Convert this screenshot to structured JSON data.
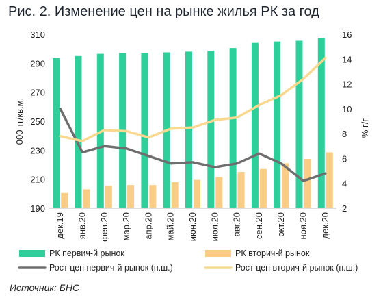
{
  "title": "Рис. 2. Изменение цен на рынке жилья РК за год",
  "source": "Источник: БНС",
  "colors": {
    "primary_bar": "#2ecf9a",
    "secondary_bar": "#f9cd85",
    "primary_line": "#6e6e6e",
    "secondary_line": "#f9d88f"
  },
  "chart_data": {
    "type": "bar",
    "categories": [
      "дек.19",
      "янв.20",
      "фев.20",
      "мар.20",
      "апр.20",
      "май.20",
      "июн.20",
      "июл.20",
      "авг.20",
      "сен.20",
      "окт.20",
      "ноя.20",
      "дек.20"
    ],
    "ylabel": "000 тг/кв.м.",
    "ylabel_right": "% г/г",
    "ylim": [
      190,
      310
    ],
    "yticks": [
      190,
      210,
      230,
      250,
      270,
      290,
      310
    ],
    "ylim_right": [
      2,
      16
    ],
    "yticks_right": [
      2,
      4,
      6,
      8,
      10,
      12,
      14,
      16
    ],
    "grid": false,
    "legend_position": "bottom",
    "series": [
      {
        "name": "РК первич-й рынок",
        "type": "bar",
        "axis": "left",
        "values": [
          293.5,
          295,
          296.5,
          297,
          297.2,
          297.5,
          298,
          298.5,
          300.5,
          304,
          305,
          305.5,
          307.5
        ]
      },
      {
        "name": "РК вторич-й рынок",
        "type": "bar",
        "axis": "left",
        "values": [
          200.5,
          203,
          205.5,
          206,
          206,
          208,
          209.5,
          211.5,
          215,
          217,
          221,
          224,
          228.5
        ]
      },
      {
        "name": "Рост цен первич-й рынок (п.ш.)",
        "type": "line",
        "axis": "right",
        "values": [
          10,
          6.5,
          7,
          6.8,
          6.2,
          5.6,
          5.7,
          5.3,
          5.6,
          6.4,
          5.6,
          4.2,
          4.8
        ]
      },
      {
        "name": "Рост цен вторич-й рынок (п.ш.)",
        "type": "line",
        "axis": "right",
        "values": [
          7.8,
          7.4,
          8.3,
          8.2,
          7.7,
          8.4,
          8.5,
          9.1,
          9.3,
          10.3,
          11.1,
          12.4,
          14.1
        ]
      }
    ]
  }
}
